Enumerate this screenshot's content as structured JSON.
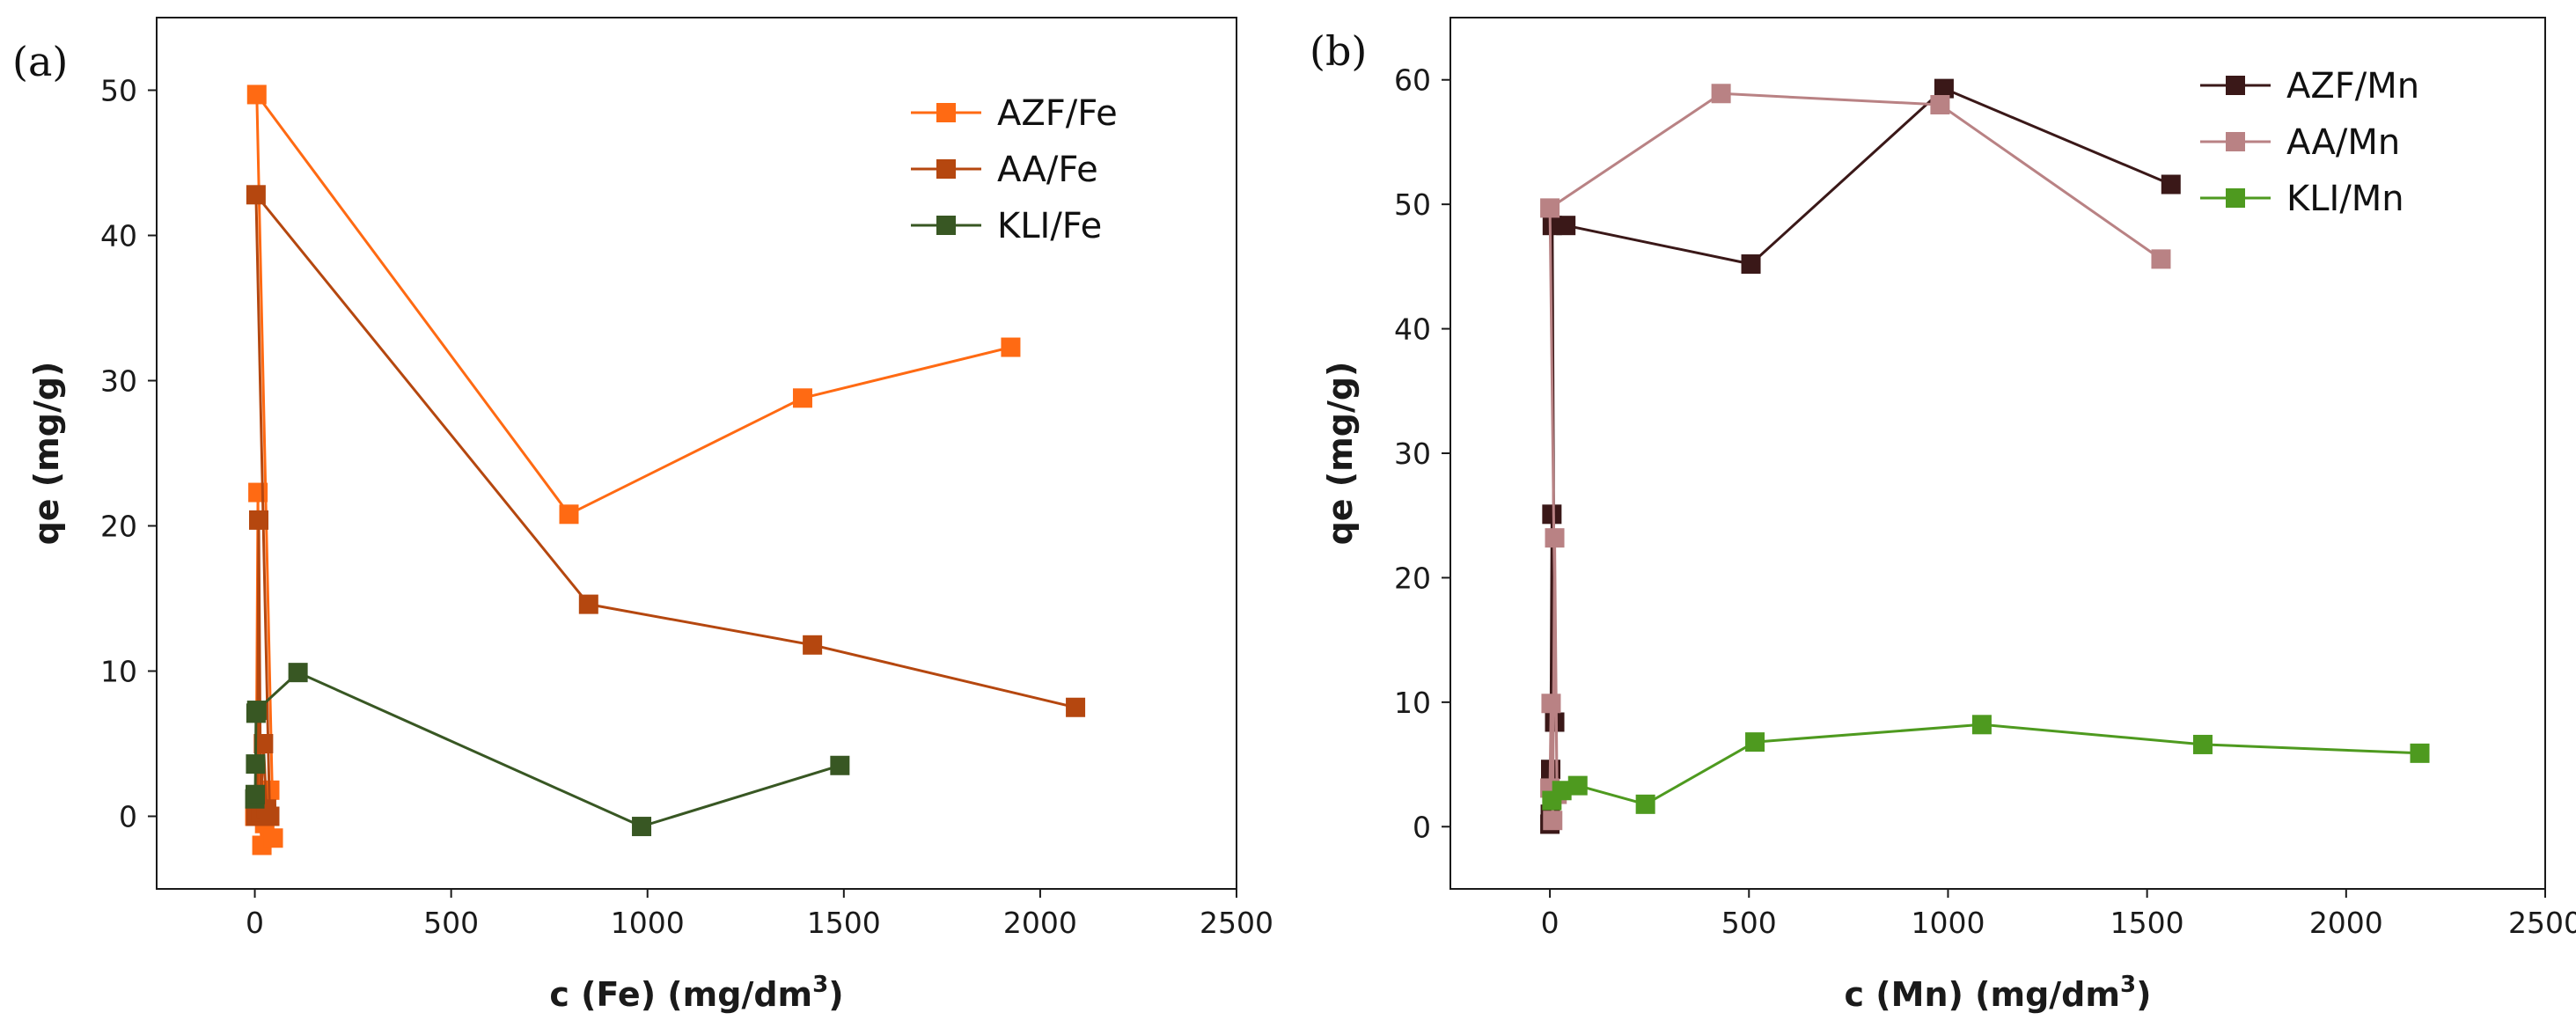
{
  "panels": {
    "a": {
      "label": "(a)"
    },
    "b": {
      "label": "(b)"
    }
  },
  "chart_data": [
    {
      "type": "line",
      "panel": "(a)",
      "title": "",
      "xlabel": "c (Fe) (mg/dm",
      "xlabel_sup": "3",
      "xlabel_end": ")",
      "ylabel": "qe (mg/g)",
      "xlim": [
        -250,
        2500
      ],
      "ylim": [
        -5,
        55
      ],
      "xticks": [
        0,
        500,
        1000,
        1500,
        2000,
        2500
      ],
      "yticks": [
        0,
        10,
        20,
        30,
        40,
        50
      ],
      "legend_position": "top-right",
      "series": [
        {
          "name": "AZF/Fe",
          "color": "#ff6a13",
          "x": [
            0,
            3,
            8,
            12,
            18,
            25,
            30,
            38,
            47,
            5,
            800,
            1395,
            1925
          ],
          "y": [
            0,
            0.2,
            22.3,
            0.3,
            -2.0,
            -0.5,
            0.2,
            1.8,
            -1.5,
            49.7,
            20.8,
            28.8,
            32.3
          ]
        },
        {
          "name": "AA/Fe",
          "color": "#b5470f",
          "x": [
            2,
            6,
            10,
            15,
            22,
            30,
            38,
            3,
            850,
            1420,
            2090
          ],
          "y": [
            0,
            0.4,
            20.4,
            0.3,
            5.0,
            0.5,
            0.0,
            42.8,
            14.6,
            11.8,
            7.5
          ]
        },
        {
          "name": "KLI/Fe",
          "color": "#385723",
          "x": [
            0,
            1,
            2,
            3,
            5,
            110,
            985,
            1490
          ],
          "y": [
            1.2,
            1.5,
            3.6,
            7.1,
            7.3,
            9.9,
            -0.7,
            3.5
          ]
        }
      ]
    },
    {
      "type": "line",
      "panel": "(b)",
      "title": "",
      "xlabel": "c (Mn) (mg/dm",
      "xlabel_sup": "3",
      "xlabel_end": ")",
      "ylabel": "qe (mg/g)",
      "xlim": [
        -250,
        2500
      ],
      "ylim": [
        -5,
        65
      ],
      "xticks": [
        0,
        500,
        1000,
        1500,
        2000,
        2500
      ],
      "yticks": [
        0,
        10,
        20,
        30,
        40,
        50,
        60
      ],
      "legend_position": "top-right",
      "series": [
        {
          "name": "AZF/Mn",
          "color": "#3a1818",
          "x": [
            0,
            1,
            2,
            5,
            12,
            6,
            40,
            505,
            990,
            1560
          ],
          "y": [
            0.2,
            1.0,
            4.6,
            25.1,
            8.4,
            48.3,
            48.3,
            45.2,
            59.3,
            51.6
          ]
        },
        {
          "name": "AA/Mn",
          "color": "#b98284",
          "x": [
            0,
            3,
            7,
            12,
            18,
            0,
            430,
            980,
            1535
          ],
          "y": [
            3.1,
            9.9,
            0.5,
            23.2,
            2.6,
            49.7,
            58.9,
            58.0,
            45.6
          ]
        },
        {
          "name": "KLI/Mn",
          "color": "#4e9a1f",
          "x": [
            5,
            30,
            70,
            240,
            515,
            1085,
            1640,
            2185
          ],
          "y": [
            2.1,
            2.9,
            3.3,
            1.8,
            6.8,
            8.2,
            6.6,
            5.9
          ]
        }
      ]
    }
  ]
}
